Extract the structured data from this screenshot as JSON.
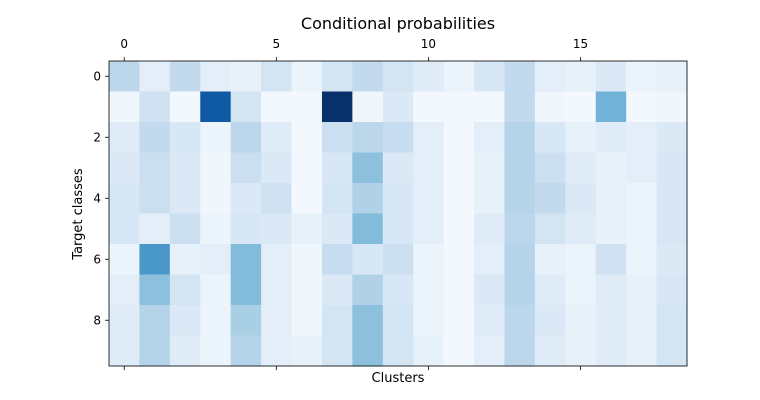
{
  "chart_data": {
    "type": "heatmap",
    "title": "Conditional probabilities",
    "xlabel": "Clusters",
    "ylabel": "Target classes",
    "x_ticks": [
      0,
      5,
      10,
      15
    ],
    "y_ticks": [
      0,
      2,
      4,
      6,
      8
    ],
    "x_tick_position": "top",
    "colormap": "Blues",
    "vmin": 0.0,
    "vmax": 0.5,
    "n_rows": 10,
    "n_cols": 19,
    "values": [
      [
        0.14,
        0.05,
        0.13,
        0.05,
        0.04,
        0.09,
        0.03,
        0.09,
        0.13,
        0.09,
        0.06,
        0.03,
        0.08,
        0.13,
        0.05,
        0.04,
        0.07,
        0.03,
        0.04
      ],
      [
        0.02,
        0.1,
        0.01,
        0.42,
        0.09,
        0.01,
        0.01,
        0.5,
        0.02,
        0.07,
        0.01,
        0.01,
        0.01,
        0.13,
        0.02,
        0.01,
        0.24,
        0.01,
        0.02
      ],
      [
        0.06,
        0.13,
        0.08,
        0.03,
        0.14,
        0.06,
        0.01,
        0.11,
        0.14,
        0.12,
        0.05,
        0.01,
        0.05,
        0.15,
        0.08,
        0.04,
        0.06,
        0.05,
        0.07
      ],
      [
        0.07,
        0.11,
        0.07,
        0.02,
        0.11,
        0.07,
        0.01,
        0.08,
        0.21,
        0.07,
        0.05,
        0.01,
        0.04,
        0.15,
        0.11,
        0.06,
        0.04,
        0.05,
        0.08
      ],
      [
        0.08,
        0.11,
        0.07,
        0.02,
        0.07,
        0.1,
        0.01,
        0.09,
        0.16,
        0.08,
        0.05,
        0.01,
        0.04,
        0.15,
        0.13,
        0.07,
        0.04,
        0.03,
        0.08
      ],
      [
        0.08,
        0.05,
        0.11,
        0.03,
        0.08,
        0.07,
        0.04,
        0.07,
        0.22,
        0.08,
        0.05,
        0.01,
        0.06,
        0.14,
        0.09,
        0.06,
        0.04,
        0.03,
        0.08
      ],
      [
        0.03,
        0.3,
        0.04,
        0.05,
        0.22,
        0.05,
        0.02,
        0.12,
        0.08,
        0.11,
        0.03,
        0.01,
        0.05,
        0.15,
        0.04,
        0.03,
        0.1,
        0.03,
        0.07
      ],
      [
        0.05,
        0.21,
        0.09,
        0.03,
        0.22,
        0.05,
        0.02,
        0.07,
        0.16,
        0.08,
        0.03,
        0.01,
        0.07,
        0.15,
        0.06,
        0.03,
        0.06,
        0.04,
        0.08
      ],
      [
        0.06,
        0.15,
        0.07,
        0.03,
        0.17,
        0.05,
        0.02,
        0.09,
        0.21,
        0.09,
        0.03,
        0.01,
        0.06,
        0.14,
        0.07,
        0.04,
        0.06,
        0.04,
        0.09
      ],
      [
        0.06,
        0.15,
        0.06,
        0.03,
        0.15,
        0.05,
        0.04,
        0.09,
        0.21,
        0.09,
        0.04,
        0.01,
        0.05,
        0.14,
        0.06,
        0.04,
        0.06,
        0.04,
        0.09
      ]
    ],
    "grid": false,
    "legend": "none"
  }
}
